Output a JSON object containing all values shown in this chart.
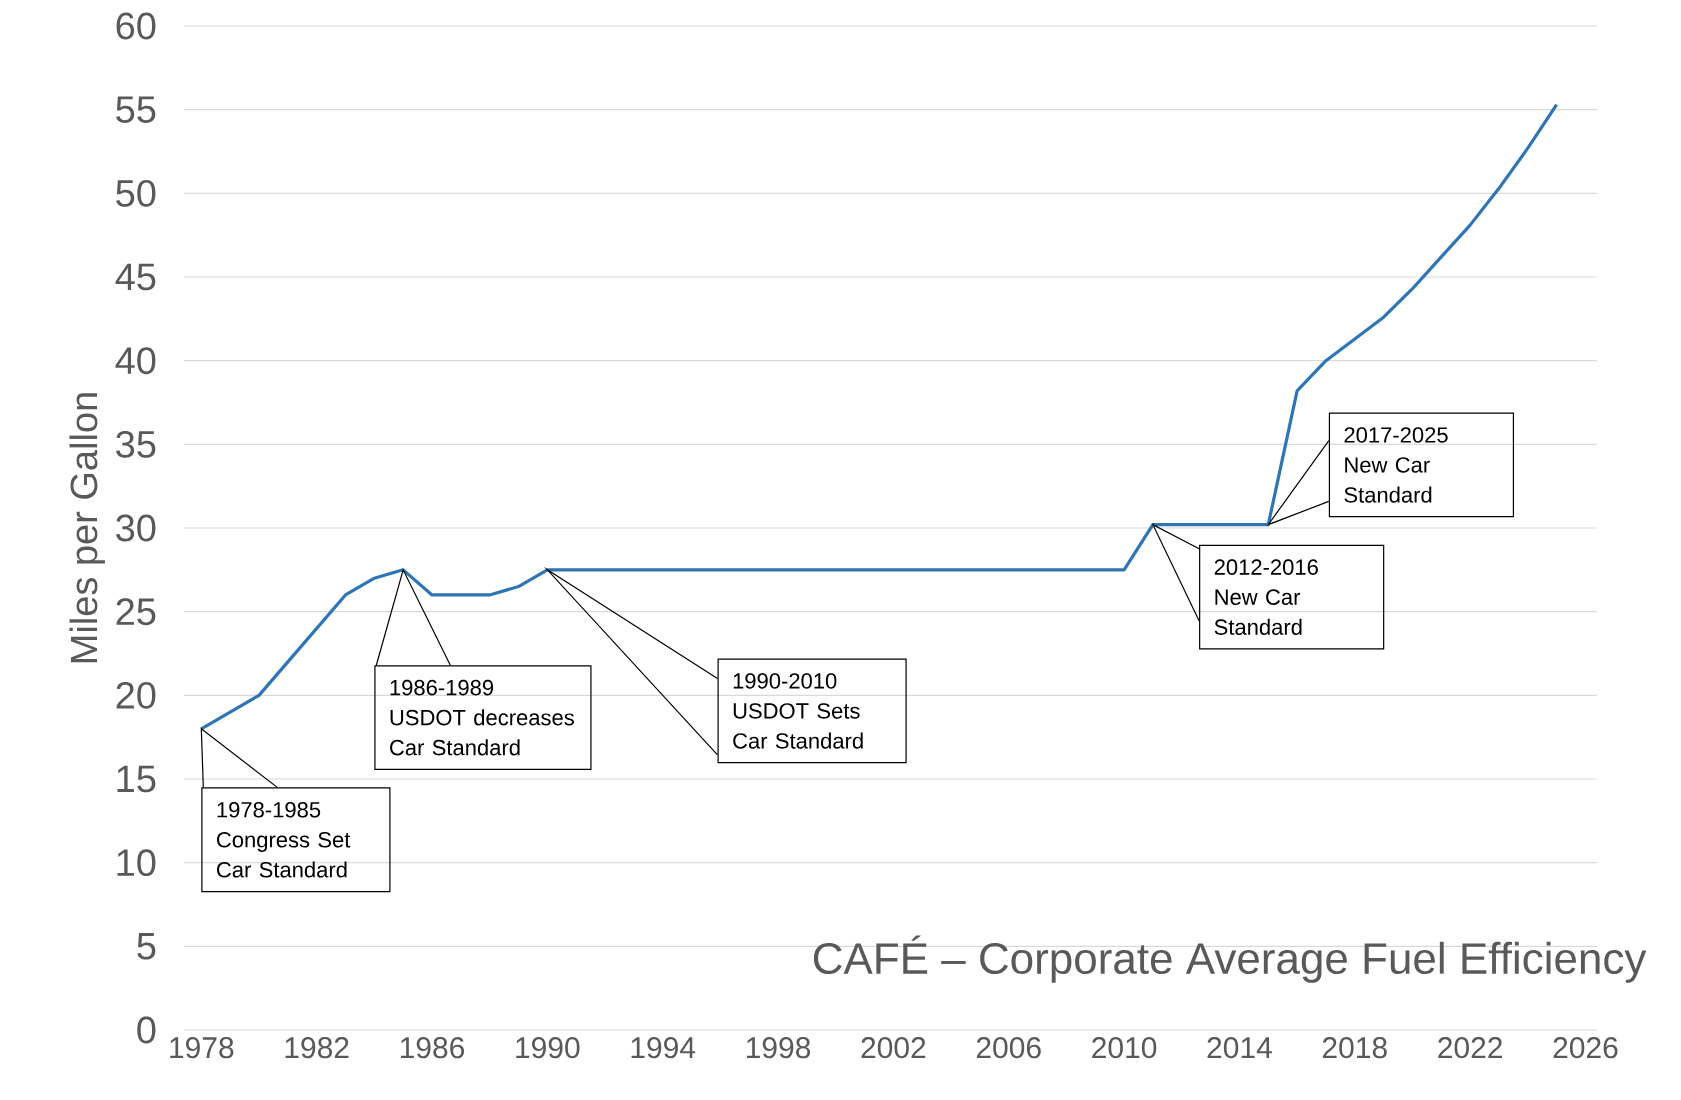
{
  "chart_data": {
    "type": "line",
    "ylabel": "Miles per Gallon",
    "x": [
      1978,
      1980,
      1981,
      1982,
      1983,
      1984,
      1985,
      1986,
      1987,
      1988,
      1989,
      1990,
      2010,
      2011,
      2015,
      2016,
      2017,
      2018,
      2019,
      2020,
      2021,
      2022,
      2023,
      2024,
      2025
    ],
    "series": [
      {
        "color": "#2e75b6",
        "values": [
          18,
          20,
          22,
          24,
          26,
          27,
          27.5,
          26,
          26,
          26,
          26.5,
          27.5,
          27.5,
          30.2,
          30.2,
          38.2,
          40,
          41.3,
          42.6,
          44.3,
          46.2,
          48.1,
          50.3,
          52.7,
          55.3
        ]
      }
    ],
    "xlim": [
      1977.4,
      2026.4
    ],
    "ylim": [
      0,
      60
    ],
    "xticks": [
      1978,
      1982,
      1986,
      1990,
      1994,
      1998,
      2002,
      2006,
      2010,
      2014,
      2018,
      2022,
      2026
    ],
    "yticks": [
      0,
      5,
      10,
      15,
      20,
      25,
      30,
      35,
      40,
      45,
      50,
      55,
      60
    ],
    "grid": "y",
    "marker": "none",
    "line_style": "solid",
    "annotations": [
      "1978-1985 Congress Set Car Standard",
      "1986-1989 USDOT decreases Car Standard",
      "1990-2010 USDOT Sets Car Standard",
      "2012-2016 New Car Standard",
      "2017-2025 New Car Standard",
      "CAFÉ – Corporate Average Fuel Efficiency"
    ]
  }
}
